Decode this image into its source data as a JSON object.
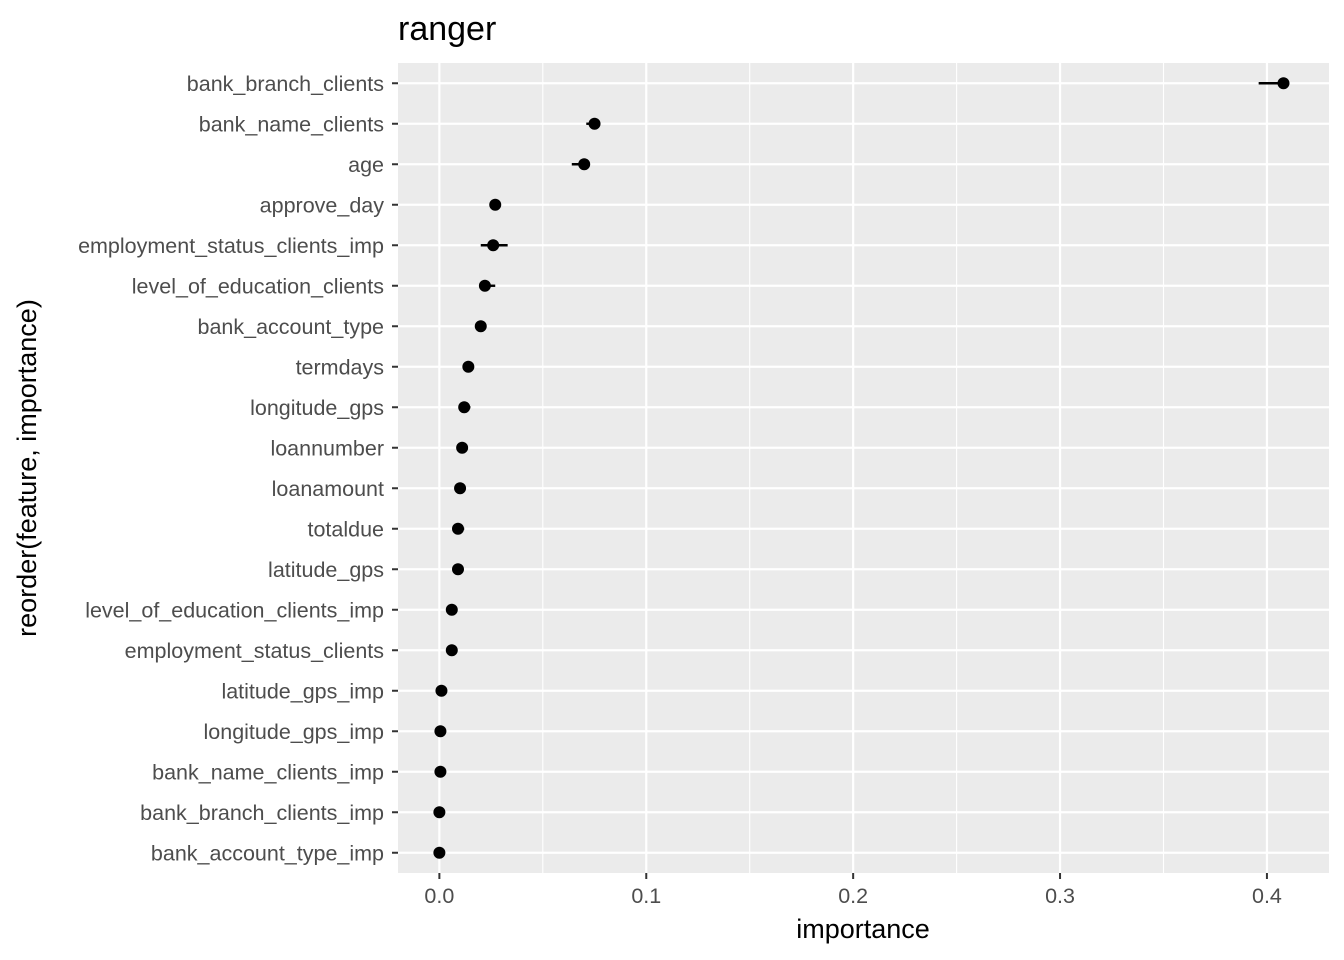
{
  "chart_data": {
    "type": "scatter",
    "title": "ranger",
    "xlabel": "importance",
    "ylabel": "reorder(feature, importance)",
    "xlim": [
      -0.02,
      0.43
    ],
    "x_ticks": [
      0.0,
      0.1,
      0.2,
      0.3,
      0.4
    ],
    "x_tick_labels": [
      "0.0",
      "0.1",
      "0.2",
      "0.3",
      "0.4"
    ],
    "grid": true,
    "panel_background": "#ebebeb",
    "grid_color": "#ffffff",
    "point_color": "#000000",
    "features": [
      {
        "name": "bank_branch_clients",
        "importance": 0.408,
        "lower": 0.396,
        "upper": 0.408
      },
      {
        "name": "bank_name_clients",
        "importance": 0.075,
        "lower": 0.071,
        "upper": 0.077
      },
      {
        "name": "age",
        "importance": 0.07,
        "lower": 0.064,
        "upper": 0.072
      },
      {
        "name": "approve_day",
        "importance": 0.027,
        "lower": 0.026,
        "upper": 0.028
      },
      {
        "name": "employment_status_clients_imp",
        "importance": 0.026,
        "lower": 0.02,
        "upper": 0.033
      },
      {
        "name": "level_of_education_clients",
        "importance": 0.022,
        "lower": 0.021,
        "upper": 0.027
      },
      {
        "name": "bank_account_type",
        "importance": 0.02,
        "lower": 0.019,
        "upper": 0.021
      },
      {
        "name": "termdays",
        "importance": 0.014,
        "lower": 0.013,
        "upper": 0.015
      },
      {
        "name": "longitude_gps",
        "importance": 0.012,
        "lower": 0.011,
        "upper": 0.015
      },
      {
        "name": "loannumber",
        "importance": 0.011,
        "lower": 0.01,
        "upper": 0.012
      },
      {
        "name": "loanamount",
        "importance": 0.01,
        "lower": 0.009,
        "upper": 0.011
      },
      {
        "name": "totaldue",
        "importance": 0.009,
        "lower": 0.008,
        "upper": 0.012
      },
      {
        "name": "latitude_gps",
        "importance": 0.009,
        "lower": 0.008,
        "upper": 0.01
      },
      {
        "name": "level_of_education_clients_imp",
        "importance": 0.006,
        "lower": 0.005,
        "upper": 0.007
      },
      {
        "name": "employment_status_clients",
        "importance": 0.006,
        "lower": 0.005,
        "upper": 0.007
      },
      {
        "name": "latitude_gps_imp",
        "importance": 0.001,
        "lower": 0.0,
        "upper": 0.002
      },
      {
        "name": "longitude_gps_imp",
        "importance": 0.0005,
        "lower": 0.0,
        "upper": 0.001
      },
      {
        "name": "bank_name_clients_imp",
        "importance": 0.0005,
        "lower": 0.0,
        "upper": 0.001
      },
      {
        "name": "bank_branch_clients_imp",
        "importance": 0.0,
        "lower": 0.0,
        "upper": 0.001
      },
      {
        "name": "bank_account_type_imp",
        "importance": 0.0,
        "lower": 0.0,
        "upper": 0.001
      }
    ]
  }
}
